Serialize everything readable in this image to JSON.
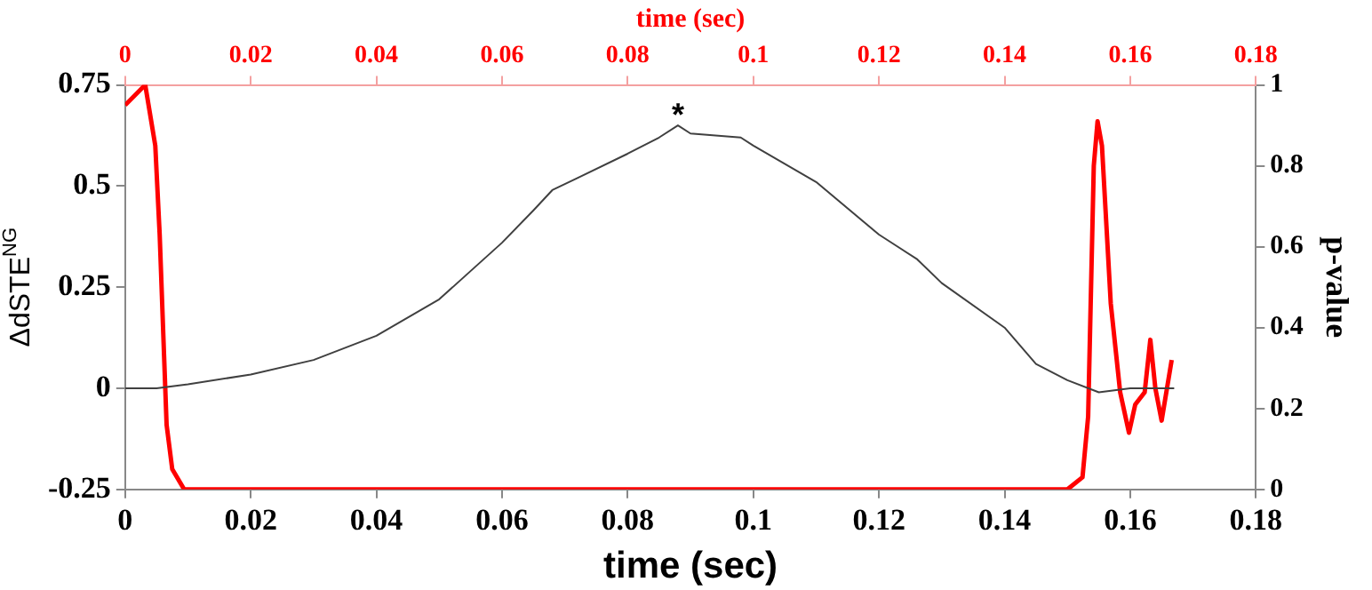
{
  "chart_data": {
    "type": "line",
    "xlabel": "time (sec)",
    "ylabel": "ΔdSTE$^{NG}$",
    "y2label": "p-value",
    "x2label": "time (sec)",
    "xlim": [
      0,
      0.18
    ],
    "xticks": [
      0,
      0.02,
      0.04,
      0.06,
      0.08,
      0.1,
      0.12,
      0.14,
      0.16,
      0.18
    ],
    "x2lim": [
      0,
      0.18
    ],
    "x2ticks": [
      0,
      0.02,
      0.04,
      0.06,
      0.08,
      0.1,
      0.12,
      0.14,
      0.16,
      0.18
    ],
    "ylim": [
      -0.25,
      0.75
    ],
    "yticks": [
      -0.25,
      0,
      0.25,
      0.5,
      0.75
    ],
    "y2lim": [
      0,
      1
    ],
    "y2ticks": [
      0,
      0.2,
      0.4,
      0.6,
      0.8,
      1
    ],
    "grid": false,
    "legend": false,
    "marker": "none",
    "line_style": "solid",
    "annotations": [
      {
        "text": "*",
        "x": 0.088,
        "y": 0.65
      }
    ],
    "series": [
      {
        "color": "#404040",
        "x": [
          0,
          0.005,
          0.01,
          0.02,
          0.03,
          0.04,
          0.05,
          0.06,
          0.065,
          0.068,
          0.072,
          0.08,
          0.085,
          0.088,
          0.09,
          0.098,
          0.1,
          0.11,
          0.12,
          0.126,
          0.13,
          0.14,
          0.145,
          0.15,
          0.155,
          0.16,
          0.167
        ],
        "values": [
          0,
          0,
          0.01,
          0.034,
          0.07,
          0.13,
          0.22,
          0.36,
          0.44,
          0.49,
          0.52,
          0.58,
          0.62,
          0.65,
          0.63,
          0.62,
          0.6,
          0.51,
          0.38,
          0.32,
          0.26,
          0.15,
          0.06,
          0.02,
          -0.01,
          0,
          0
        ]
      },
      {
        "color": "#ff0000",
        "axis": "y2",
        "x": [
          0,
          0.0032,
          0.0048,
          0.0055,
          0.0062,
          0.0066,
          0.0075,
          0.0094,
          0.15,
          0.1524,
          0.1533,
          0.1542,
          0.1548,
          0.1555,
          0.1569,
          0.1584,
          0.1598,
          0.1608,
          0.1623,
          0.1632,
          0.164,
          0.165,
          0.1666
        ],
        "values": [
          0.95,
          1,
          0.85,
          0.63,
          0.33,
          0.16,
          0.05,
          0,
          0,
          0.03,
          0.18,
          0.8,
          0.91,
          0.85,
          0.46,
          0.24,
          0.14,
          0.21,
          0.24,
          0.37,
          0.25,
          0.17,
          0.32
        ]
      }
    ]
  }
}
